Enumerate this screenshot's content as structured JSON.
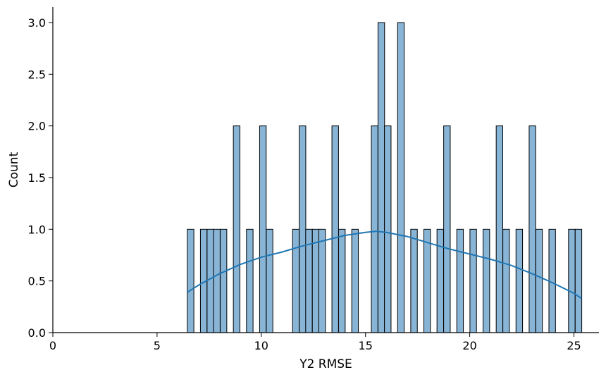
{
  "chart_data": {
    "type": "bar",
    "xlabel": "Y2 RMSE",
    "ylabel": "Count",
    "xlim": [
      0,
      26.2
    ],
    "ylim": [
      0,
      3.15
    ],
    "x_ticks": [
      0,
      5,
      10,
      15,
      20,
      25
    ],
    "x_tick_labels": [
      "0",
      "5",
      "10",
      "15",
      "20",
      "25"
    ],
    "y_ticks": [
      0,
      0.5,
      1.0,
      1.5,
      2.0,
      2.5,
      3.0
    ],
    "y_tick_labels": [
      "0.0",
      "0.5",
      "1.0",
      "1.5",
      "2.0",
      "2.5",
      "3.0"
    ],
    "grid": false,
    "bin_width": 0.315,
    "bins": [
      {
        "x0": 6.45,
        "count": 1
      },
      {
        "x0": 7.08,
        "count": 1
      },
      {
        "x0": 7.4,
        "count": 1
      },
      {
        "x0": 7.71,
        "count": 1
      },
      {
        "x0": 8.03,
        "count": 1
      },
      {
        "x0": 8.66,
        "count": 2
      },
      {
        "x0": 9.29,
        "count": 1
      },
      {
        "x0": 9.92,
        "count": 2
      },
      {
        "x0": 10.24,
        "count": 1
      },
      {
        "x0": 11.5,
        "count": 1
      },
      {
        "x0": 11.82,
        "count": 2
      },
      {
        "x0": 12.13,
        "count": 1
      },
      {
        "x0": 12.45,
        "count": 1
      },
      {
        "x0": 12.76,
        "count": 1
      },
      {
        "x0": 13.39,
        "count": 2
      },
      {
        "x0": 13.71,
        "count": 1
      },
      {
        "x0": 14.34,
        "count": 1
      },
      {
        "x0": 15.28,
        "count": 2
      },
      {
        "x0": 15.6,
        "count": 3
      },
      {
        "x0": 15.91,
        "count": 2
      },
      {
        "x0": 16.54,
        "count": 3
      },
      {
        "x0": 17.17,
        "count": 1
      },
      {
        "x0": 17.8,
        "count": 1
      },
      {
        "x0": 18.43,
        "count": 1
      },
      {
        "x0": 18.75,
        "count": 2
      },
      {
        "x0": 19.38,
        "count": 1
      },
      {
        "x0": 20.01,
        "count": 1
      },
      {
        "x0": 20.64,
        "count": 1
      },
      {
        "x0": 21.27,
        "count": 2
      },
      {
        "x0": 21.59,
        "count": 1
      },
      {
        "x0": 22.22,
        "count": 1
      },
      {
        "x0": 22.85,
        "count": 2
      },
      {
        "x0": 23.17,
        "count": 1
      },
      {
        "x0": 23.8,
        "count": 1
      },
      {
        "x0": 24.74,
        "count": 1
      },
      {
        "x0": 25.06,
        "count": 1
      }
    ],
    "kde": {
      "x": [
        6.45,
        7.0,
        8.0,
        9.0,
        10.0,
        11.0,
        12.0,
        13.0,
        14.0,
        15.0,
        15.5,
        16.0,
        17.0,
        18.0,
        19.0,
        20.0,
        21.0,
        22.0,
        23.0,
        24.0,
        25.0,
        25.37
      ],
      "y": [
        0.39,
        0.46,
        0.57,
        0.66,
        0.73,
        0.78,
        0.84,
        0.89,
        0.94,
        0.97,
        0.98,
        0.97,
        0.93,
        0.87,
        0.81,
        0.76,
        0.71,
        0.65,
        0.57,
        0.48,
        0.38,
        0.33
      ]
    },
    "colors": {
      "bar_fill": "#88b4d6",
      "bar_edge": "#000000",
      "kde_line": "#1f77b4",
      "axis": "#000000"
    }
  }
}
